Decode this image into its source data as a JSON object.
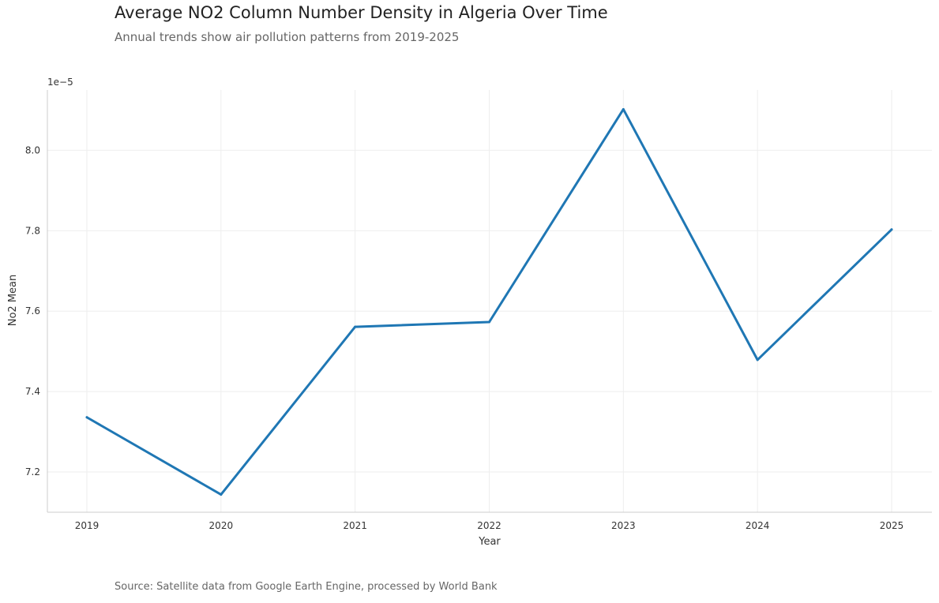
{
  "chart_data": {
    "type": "line",
    "title": "Average NO2 Column Number Density in Algeria Over Time",
    "subtitle": "Annual trends show air pollution patterns from 2019-2025",
    "source": "Source: Satellite data from Google Earth Engine, processed by World Bank",
    "xlabel": "Year",
    "ylabel": "No2 Mean",
    "y_offset_label": "1e−5",
    "x": [
      "2019",
      "2020",
      "2021",
      "2022",
      "2023",
      "2024",
      "2025"
    ],
    "series": [
      {
        "name": "No2 Mean",
        "values": [
          7.336,
          7.144,
          7.561,
          7.573,
          8.102,
          7.479,
          7.803
        ]
      }
    ],
    "ylim": [
      7.1,
      8.15
    ],
    "yticks": [
      7.2,
      7.4,
      7.6,
      7.8,
      8.0
    ],
    "grid": true,
    "line_color": "#1f77b4"
  }
}
